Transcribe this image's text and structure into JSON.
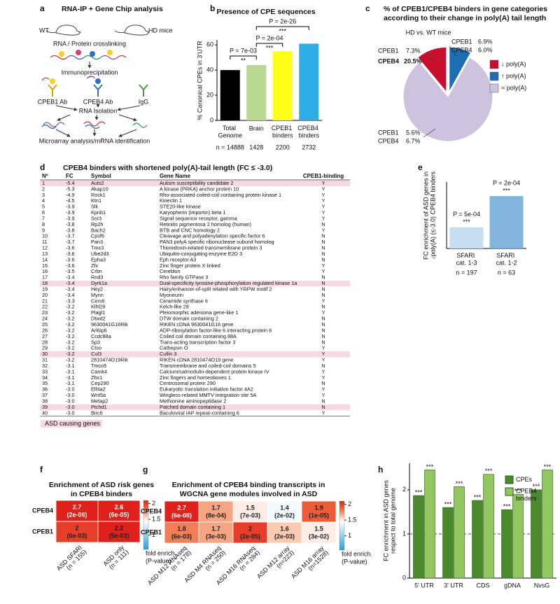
{
  "panel_labels": [
    "a",
    "b",
    "c",
    "d",
    "e",
    "f",
    "g",
    "h"
  ],
  "diagram": {
    "title": "RNA-IP + Gene Chip analysis",
    "labels": [
      "WT",
      "HD mice",
      "RNA / Protein crosslinking",
      "Immunoprecipitation",
      "CPEB1 Ab",
      "CPEB4 Ab",
      "IgG",
      "RNA Isolation",
      "Microarray analysis/mRNA identification"
    ]
  },
  "chart_data": [
    {
      "type": "bar",
      "title": "Presence of CPE sequences",
      "ylabel": "% Canonical CPEs in 3'UTR",
      "categories": [
        "Total Genome",
        "Brain",
        "CPEB1 binders",
        "CPEB4 binders"
      ],
      "values": [
        40,
        44,
        55,
        61
      ],
      "colors": [
        "#000000",
        "#b8d98f",
        "#ffff1a",
        "#2eaee6"
      ],
      "n_labels": [
        "n = 14888",
        "1428",
        "2200",
        "2732"
      ],
      "ylim": [
        0,
        64
      ],
      "yticks": [
        0,
        20,
        40,
        60
      ],
      "comparisons": [
        {
          "bars": [
            0,
            1
          ],
          "p": "P = 7e-03",
          "stars": "**"
        },
        {
          "bars": [
            1,
            2
          ],
          "p": "P = 2e-04",
          "stars": "***"
        },
        {
          "bars": [
            1,
            3
          ],
          "p": "P = 2e-26",
          "stars": "***"
        }
      ]
    },
    {
      "type": "pie",
      "title": [
        "% of CPEB1/CPEB4 binders in gene categories",
        "according to their change in poly(A) tail length"
      ],
      "subtitle": "HD vs. WT mice",
      "categories": [
        "↓ poly(A)",
        "↑ poly(A)",
        "= poly(A)"
      ],
      "values": [
        11,
        8,
        81
      ],
      "colors": [
        "#c8102e",
        "#1d6db4",
        "#cec3de"
      ],
      "annotations": [
        "CPEB1",
        "7.3%",
        "CPEB4",
        "20.5%",
        "CPEB1",
        "6.9%",
        "CPEB4",
        "6.0%",
        "CPEB1",
        "5.6%",
        "CPEB4",
        "6.7%"
      ]
    },
    {
      "type": "bar",
      "ylabel": [
        "FC enrichment of ASD genes in",
        "↓poly(A) (≤-3.0) CPEB4 binders"
      ],
      "categories": [
        "SFARI cat. 1-3",
        "SFARI cat. 1-2"
      ],
      "values": [
        10.5,
        26
      ],
      "colors": [
        "#c6dcf0",
        "#82b5dc"
      ],
      "p_labels": [
        "P = 5e-04",
        "P = 2e-04"
      ],
      "stars": [
        "***",
        "***"
      ],
      "n_labels": [
        "n = 197",
        "n = 63"
      ],
      "ylim": [
        0,
        33
      ]
    },
    {
      "type": "heatmap",
      "title": [
        "Enrichment of ASD risk genes",
        "in CPEB4 binders"
      ],
      "rows": [
        "CPEB4",
        "CPEB1"
      ],
      "columns": [
        [
          "ASD SFARI",
          "(n = 155)"
        ],
        [
          "ASD only",
          "(n = 111)"
        ]
      ],
      "values": [
        [
          2.7,
          2.6
        ],
        [
          2,
          2.2
        ]
      ],
      "p_labels": [
        [
          "(2e-06)",
          "(6e-05)"
        ],
        [
          "(6e-03)",
          "(5e-03)"
        ]
      ],
      "clim": [
        0.55,
        2.1
      ],
      "cticks": [
        2,
        1.5,
        1
      ],
      "colorscale": [
        [
          0.55,
          "#1aa3e0"
        ],
        [
          1.45,
          "#ffffff"
        ],
        [
          1.65,
          "#f8b89a"
        ],
        [
          1.85,
          "#ef6b3f"
        ],
        [
          2.1,
          "#e0201b"
        ]
      ],
      "colorbar_label": [
        "fold enrich.",
        "(P-value)"
      ]
    },
    {
      "type": "heatmap",
      "title": [
        "Enrichment of CPEB4 binding transcripts in",
        "WGCNA gene modules involved in ASD"
      ],
      "rows": [
        "CPEB4",
        "CPEB1"
      ],
      "columns": [
        [
          "ASD M12 RNAseq",
          "(n = 178)"
        ],
        [
          "ASD M4 RNAseq",
          "(n = 250)"
        ],
        [
          "ASD M16 RNAseq",
          "(n = 284)"
        ],
        [
          "ASD M12 array",
          "(n=223)"
        ],
        [
          "ASD M16 array",
          "(n=1528)"
        ]
      ],
      "values": [
        [
          2.7,
          1.7,
          1.5,
          1.4,
          1.9
        ],
        [
          1.8,
          1.7,
          2,
          1.6,
          1.5
        ]
      ],
      "p_labels": [
        [
          "(6e-08)",
          "(8e-04)",
          "(7e-03)",
          "(2e-02)",
          "(1e-05)"
        ],
        [
          "(6e-03)",
          "(3e-03)",
          "(2e-05)",
          "(2e-03)",
          "(3e-02)"
        ]
      ],
      "clim": [
        0.55,
        2.1
      ],
      "cticks": [
        2,
        1.5,
        1
      ],
      "colorscale": [
        [
          0.55,
          "#1aa3e0"
        ],
        [
          1.45,
          "#ffffff"
        ],
        [
          1.65,
          "#f8b89a"
        ],
        [
          1.85,
          "#ef6b3f"
        ],
        [
          2.1,
          "#e0201b"
        ]
      ],
      "colorbar_label": [
        "fold enrich.",
        "(P-value)"
      ]
    },
    {
      "type": "bar",
      "ylabel": [
        "FC enrichment in ASD genes",
        "respect to total genome"
      ],
      "categories": [
        "5' UTR",
        "3' UTR",
        "CDS",
        "gDNA",
        "NvsG"
      ],
      "series": [
        {
          "name": "CPEs",
          "color": "#4a8a2c",
          "values": [
            1.87,
            1.6,
            1.76,
            1.55,
            2.0
          ],
          "annotations": [
            "***",
            "***",
            "***",
            "***",
            "***"
          ]
        },
        {
          "name": "CPEB4 binders",
          "color": "#92c760",
          "values": [
            2.45,
            2.07,
            2.35,
            1.9,
            2.45
          ],
          "annotations": [
            "***",
            "***",
            "***",
            "***",
            "***"
          ]
        }
      ],
      "ylim": [
        0,
        2.6
      ],
      "yticks": [
        0,
        1,
        2
      ],
      "hline": 1
    }
  ],
  "table": {
    "title": "CPEB4 binders with shortened poly(A)-tail length (FC ≤ -3.0)",
    "columns": [
      "Nº",
      "FC",
      "Symbol",
      "Gene Name",
      "CPEB1-binding"
    ],
    "rows": [
      [
        "1",
        "-5.4",
        "Auts2",
        "Autism susceptibility candidate 2",
        "Y"
      ],
      [
        "2",
        "-5.3",
        "Akap10",
        "A kinase (PRKA) anchor protein 10",
        "Y"
      ],
      [
        "3",
        "-4.9",
        "Rock1",
        "Rho-associated coiled-coil containing protein kinase 1",
        "Y"
      ],
      [
        "4",
        "-4.5",
        "Ktn1",
        "Kinectin 1",
        "Y"
      ],
      [
        "5",
        "-3.9",
        "Slk",
        "STE20-like kinase",
        "Y"
      ],
      [
        "6",
        "-3.9",
        "Kpnb1",
        "Karyopherin (importin) beta 1",
        "Y"
      ],
      [
        "7",
        "-3.9",
        "Ssr3",
        "Signal sequence receptor, gamma",
        "Y"
      ],
      [
        "8",
        "-3.8",
        "Rp2h",
        "Retinitis pigmentosa 2 homolog (human)",
        "N"
      ],
      [
        "9",
        "-3.8",
        "Bach2",
        "BTB and CNC homology 2",
        "Y"
      ],
      [
        "10",
        "-3.7",
        "Cpsf6",
        "Cleavage and polyadenylation specific factor 6",
        "N"
      ],
      [
        "11",
        "-3.7",
        "Pan3",
        "PAN3 polyA specific ribonuclease subunit homolog",
        "N"
      ],
      [
        "12",
        "-3.6",
        "Tmx3",
        "Thioredoxin-related transmembrane protein 3",
        "N"
      ],
      [
        "13",
        "-3.6",
        "Ube2d3",
        "Ubiquitin-conjugating enzyme E2D 3",
        "N"
      ],
      [
        "14",
        "-3.6",
        "Epha3",
        "Eph receptor A3",
        "N"
      ],
      [
        "15",
        "-3.6",
        "Zfx",
        "Zinc finger protein X-linked",
        "Y"
      ],
      [
        "16",
        "-3.5",
        "Crbn",
        "Cereblon",
        "Y"
      ],
      [
        "17",
        "-3.4",
        "Rnd3",
        "Rho family GTPase 3",
        "N"
      ],
      [
        "18",
        "-3.4",
        "Dyrk1a",
        "Dual-specificity tyrosine-phosphorylation regulated kinase 1a",
        "N"
      ],
      [
        "19",
        "-3.4",
        "Hey2",
        "Hairy/enhancer-of-split related with YRPW motif 2",
        "N"
      ],
      [
        "20",
        "-3.4",
        "Mynn",
        "Myoneurin",
        "N"
      ],
      [
        "21",
        "-3.3",
        "Cers6",
        "Ceramide synthase 6",
        "Y"
      ],
      [
        "22",
        "-3.2",
        "Klhl28",
        "Kelch-like 28",
        "N"
      ],
      [
        "23",
        "-3.2",
        "Plagl1",
        "Pleiomorphic adenoma gene-like 1",
        "Y"
      ],
      [
        "24",
        "-3.2",
        "Dtwd2",
        "DTW domain containing 2",
        "N"
      ],
      [
        "25",
        "-3.2",
        "9630041G16Rik",
        "RIKEN cDNA 9630041G16 gene",
        "N"
      ],
      [
        "26",
        "-3.2",
        "Arl6ip6",
        "ADP-ribosylation factor-like 6 interacting protein 6",
        "N"
      ],
      [
        "27",
        "-3.2",
        "Ccdc88a",
        "Coiled coil domain containing 88A",
        "N"
      ],
      [
        "28",
        "-3.2",
        "Sp3",
        "Trans-acting transcription factor 3",
        "N"
      ],
      [
        "29",
        "-3.2",
        "Ctso",
        "Cathepsin O",
        "Y"
      ],
      [
        "30",
        "-3.2",
        "Cul3",
        "Cullin 3",
        "Y"
      ],
      [
        "31",
        "-3.2",
        "2810474O19Rik",
        "RIKEN cDNA 2810474O19 gene",
        "Y"
      ],
      [
        "32",
        "-3.1",
        "Tmco5",
        "Transmembrane and coiled-coil domains 5",
        "N"
      ],
      [
        "33",
        "-3.1",
        "Camk4",
        "Calcium/calmodulin-dependent protein kinase IV",
        "Y"
      ],
      [
        "34",
        "-3.1",
        "Zhx1",
        "Zinc fingers and homeoboxes 1",
        "Y"
      ],
      [
        "35",
        "-3.1",
        "Cep290",
        "Centrosomal protein 290",
        "N"
      ],
      [
        "36",
        "-3.0",
        "Elf4a2",
        "Eukaryotic translation initiation factor 4A2",
        "Y"
      ],
      [
        "37",
        "-3.0",
        "Wnt5a",
        "Wingless-related MMTV integration site 5A",
        "Y"
      ],
      [
        "38",
        "-3.0",
        "Metap2",
        "Methionine aminopeptidase 2",
        "N"
      ],
      [
        "39",
        "-3.0",
        "Ptchd1",
        "Patched domain containing 1",
        "N"
      ],
      [
        "40",
        "-3.0",
        "Birc6",
        "Baculoviral IAP repeat-containing 6",
        "Y"
      ]
    ],
    "highlighted_rows": [
      0,
      17,
      29,
      38
    ],
    "highlight_color": "#f7d9e3",
    "legend": "ASD causing genes"
  }
}
